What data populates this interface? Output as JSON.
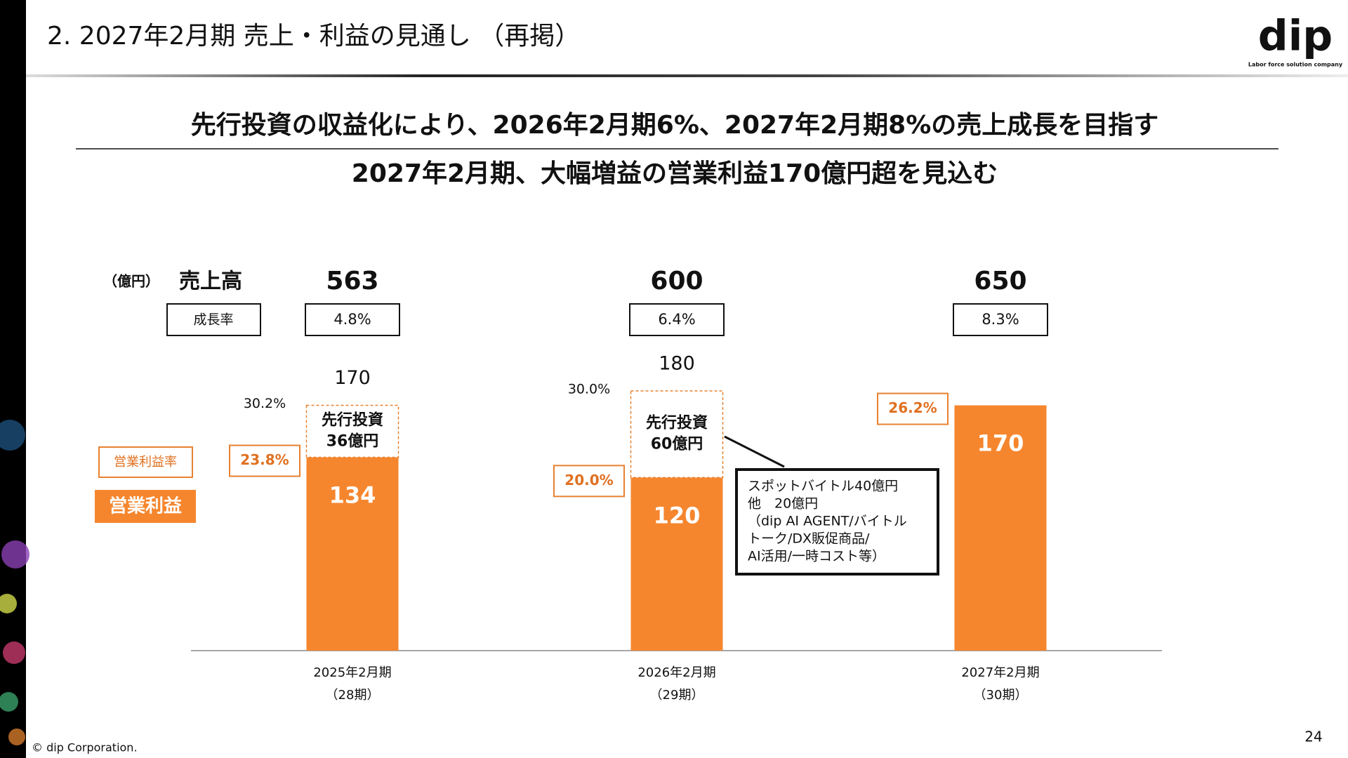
{
  "header": {
    "title": "2. 2027年2月期 売上・利益の見通し （再掲）",
    "logo": "dip",
    "tagline": "Labor force solution company"
  },
  "headlines": [
    "先行投資の収益化により、2026年2月期6%、2027年2月期8%の売上成長を目指す",
    "2027年2月期、大幅増益の営業利益170億円超を見込む"
  ],
  "chart_data": {
    "type": "stacked_bar",
    "unit": "（億円）",
    "categories": [
      "2025年2月期",
      "2026年2月期",
      "2027年2月期"
    ],
    "periods": [
      "（28期）",
      "（29期）",
      "（30期）"
    ],
    "sales": {
      "name": "売上高",
      "values": [
        563,
        600,
        650
      ]
    },
    "growth": {
      "name": "成長率",
      "values": [
        4.8,
        6.4,
        8.3
      ],
      "value_labels": [
        "4.8%",
        "6.4%",
        "8.3%"
      ]
    },
    "series": [
      {
        "name": "営業利益",
        "color": "#f5862e",
        "values": [
          134,
          120,
          170
        ]
      },
      {
        "name": "先行投資",
        "color": "#e8812f",
        "values": [
          36,
          60,
          null
        ],
        "value_labels": [
          "36億円",
          "60億円",
          null
        ]
      }
    ],
    "totals": [
      170,
      180,
      null
    ],
    "margin": {
      "name": "営業利益率",
      "values": [
        23.8,
        20.0,
        26.2
      ],
      "value_labels": [
        "23.8%",
        "20.0%",
        "26.2%"
      ]
    },
    "margin_before_investment": {
      "values": [
        30.2,
        30.0,
        null
      ],
      "value_labels": [
        "30.2%",
        "30.0%",
        null
      ]
    },
    "callout": [
      "スポットバイトル40億円",
      "他　20億円",
      "（dip AI AGENT/バイトル",
      "トーク/DX販促商品/",
      "AI活用/一時コスト等）"
    ]
  },
  "footer": {
    "copyright": "© dip Corporation.",
    "page": "24"
  }
}
